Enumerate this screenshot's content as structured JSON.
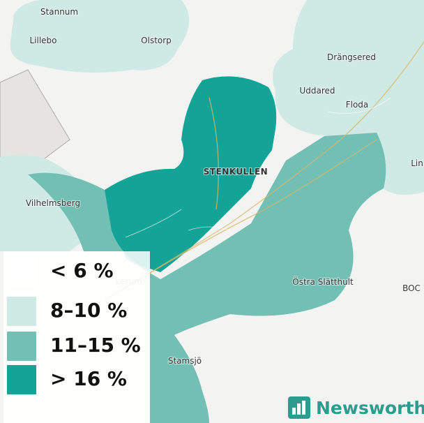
{
  "places": [
    {
      "name": "Stannum",
      "style": "normal"
    },
    {
      "name": "Lillebo",
      "style": "normal"
    },
    {
      "name": "Olstorp",
      "style": "normal"
    },
    {
      "name": "Drängsered",
      "style": "normal"
    },
    {
      "name": "Uddared",
      "style": "normal"
    },
    {
      "name": "Floda",
      "style": "normal"
    },
    {
      "name": "STENKULLEN",
      "style": "district"
    },
    {
      "name": "Vilhelmsberg",
      "style": "normal"
    },
    {
      "name": "Östra Slätthult",
      "style": "normal"
    },
    {
      "name": "Stamsjö",
      "style": "normal"
    },
    {
      "name": "Lerum",
      "style": "faded"
    },
    {
      "name": "Lin",
      "style": "normal"
    },
    {
      "name": "BOC",
      "style": "small"
    }
  ],
  "legend": [
    {
      "label": "< 6 %",
      "color": "#ffffff"
    },
    {
      "label": "8–10 %",
      "color": "#cfeae5"
    },
    {
      "label": "11–15 %",
      "color": "#72c0b4"
    },
    {
      "label": "> 16 %",
      "color": "#14a397"
    }
  ],
  "logo": "Newsworthy"
}
